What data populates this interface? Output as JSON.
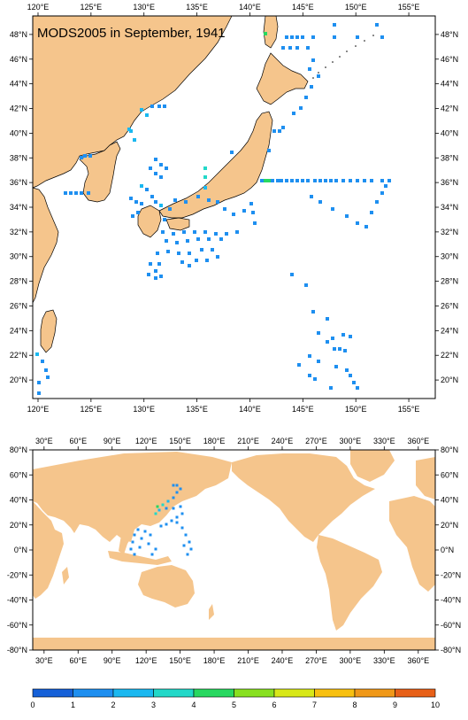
{
  "top_map": {
    "title": "MODS2005 in September, 1941",
    "lon_labels": [
      "120°E",
      "125°E",
      "130°E",
      "135°E",
      "140°E",
      "145°E",
      "150°E",
      "155°E"
    ],
    "lon_values": [
      120,
      125,
      130,
      135,
      140,
      145,
      150,
      155
    ],
    "lat_labels": [
      "20°N",
      "22°N",
      "24°N",
      "26°N",
      "28°N",
      "30°N",
      "32°N",
      "34°N",
      "36°N",
      "38°N",
      "40°N",
      "42°N",
      "44°N",
      "46°N",
      "48°N"
    ],
    "lat_values": [
      20,
      22,
      24,
      26,
      28,
      30,
      32,
      34,
      36,
      38,
      40,
      42,
      44,
      46,
      48
    ],
    "lon_range": [
      119.5,
      157.5
    ],
    "lat_range": [
      18.5,
      49.5
    ]
  },
  "bottom_map": {
    "lon_labels": [
      "30°E",
      "60°E",
      "90°E",
      "120°E",
      "150°E",
      "180°E",
      "210°E",
      "240°E",
      "270°E",
      "300°E",
      "330°E",
      "360°E"
    ],
    "lon_values": [
      30,
      60,
      90,
      120,
      150,
      180,
      210,
      240,
      270,
      300,
      330,
      360
    ],
    "lat_labels": [
      "80°N",
      "60°N",
      "40°N",
      "20°N",
      "0°N",
      "-20°N",
      "-40°N",
      "-60°N",
      "-80°N"
    ],
    "lat_values": [
      80,
      60,
      40,
      20,
      0,
      -20,
      -40,
      -60,
      -80
    ],
    "lon_range": [
      20,
      375
    ],
    "lat_range": [
      -80,
      80
    ]
  },
  "colorbar": {
    "tick_labels": [
      "0",
      "1",
      "2",
      "3",
      "4",
      "5",
      "6",
      "7",
      "8",
      "9",
      "10"
    ],
    "colors": [
      "#1560d8",
      "#1e8ff0",
      "#1ab8f0",
      "#22d8c8",
      "#28d860",
      "#88e020",
      "#d8e818",
      "#f8c010",
      "#f09818",
      "#e86018"
    ]
  },
  "colors": {
    "land": "#f5c58c",
    "ocean": "#ffffff",
    "coast": "#000000"
  }
}
